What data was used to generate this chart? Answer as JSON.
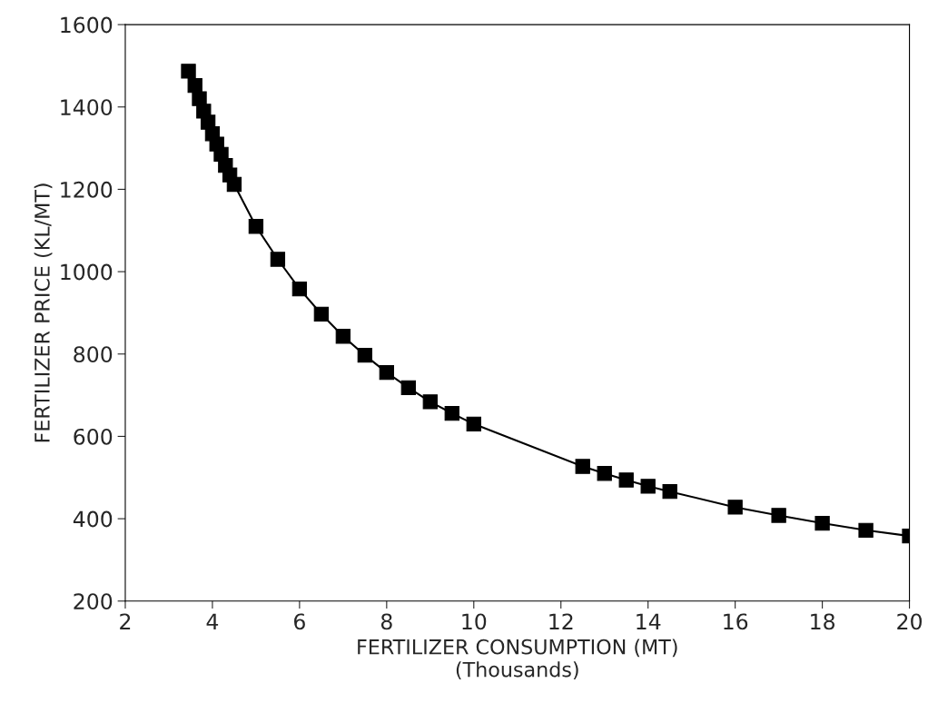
{
  "chart_data": {
    "type": "line",
    "xlabel": "FERTILIZER CONSUMPTION (MT)\n(Thousands)",
    "ylabel": "FERTILIZER PRICE (KL/MT)",
    "x": [
      3.45,
      3.6,
      3.7,
      3.8,
      3.9,
      4.0,
      4.1,
      4.2,
      4.3,
      4.4,
      4.5,
      5,
      5.5,
      6,
      6.5,
      7,
      7.5,
      8,
      8.5,
      9,
      9.5,
      10,
      12.5,
      13,
      13.5,
      14,
      14.5,
      16,
      17,
      18,
      19,
      20
    ],
    "series": [
      {
        "color": "#000000",
        "values": [
          1487,
          1452,
          1420,
          1390,
          1363,
          1335,
          1310,
          1285,
          1258,
          1235,
          1212,
          1110,
          1030,
          958,
          897,
          843,
          797,
          755,
          718,
          684,
          656,
          630,
          527,
          510,
          494,
          479,
          466,
          428,
          408,
          389,
          372,
          358
        ]
      }
    ],
    "xlim": [
      2,
      20
    ],
    "xticks": [
      2,
      4,
      6,
      8,
      10,
      12,
      14,
      16,
      18,
      20
    ],
    "ylim": [
      200,
      1600
    ],
    "yticks": [
      200,
      400,
      600,
      800,
      1000,
      1200,
      1400,
      1600
    ],
    "grid": false,
    "marker": "square",
    "line_style": "solid"
  }
}
